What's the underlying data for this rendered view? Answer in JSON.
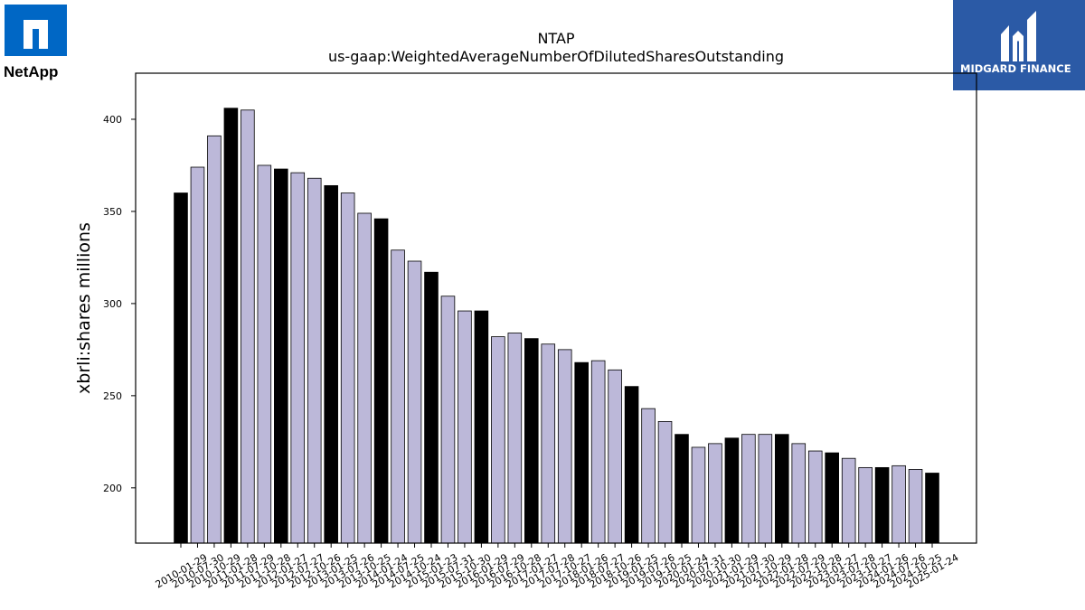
{
  "logos": {
    "left_brand": "NetApp",
    "right_brand": "MIDGARD FINANCE"
  },
  "chart_data": {
    "type": "bar",
    "title": "NTAP",
    "subtitle": "us-gaap:WeightedAverageNumberOfDilutedSharesOutstanding",
    "xlabel": "",
    "ylabel": "xbrli:shares millions",
    "ylim": [
      170,
      425
    ],
    "yticks": [
      200,
      250,
      300,
      350,
      400
    ],
    "grid": false,
    "colors": {
      "annual": "#000000",
      "quarterly": "#bcb8d9",
      "edge": "#000000"
    },
    "categories": [
      "2010-01-29",
      "2010-07-30",
      "2010-10-29",
      "2011-01-28",
      "2011-07-29",
      "2011-10-28",
      "2012-01-27",
      "2012-07-27",
      "2012-10-26",
      "2013-01-25",
      "2013-07-26",
      "2013-10-25",
      "2014-01-24",
      "2014-07-25",
      "2014-10-24",
      "2015-01-23",
      "2015-07-31",
      "2015-10-30",
      "2016-01-29",
      "2016-07-29",
      "2016-10-28",
      "2017-01-27",
      "2017-07-28",
      "2017-10-27",
      "2018-01-26",
      "2018-07-27",
      "2018-10-26",
      "2019-01-25",
      "2019-07-26",
      "2019-10-25",
      "2020-01-24",
      "2020-07-31",
      "2020-10-30",
      "2021-01-29",
      "2021-07-30",
      "2021-10-29",
      "2022-01-28",
      "2022-07-29",
      "2022-10-28",
      "2023-01-27",
      "2023-07-28",
      "2023-10-27",
      "2024-01-26",
      "2024-07-26",
      "2024-10-25",
      "2025-01-24"
    ],
    "values": [
      360,
      374,
      391,
      406,
      405,
      375,
      373,
      371,
      368,
      364,
      360,
      349,
      346,
      329,
      323,
      317,
      304,
      296,
      296,
      282,
      284,
      281,
      278,
      275,
      268,
      269,
      264,
      255,
      243,
      236,
      229,
      222,
      224,
      227,
      229,
      229,
      229,
      224,
      220,
      219,
      216,
      211,
      211,
      212,
      210,
      208
    ],
    "highlight": [
      1,
      0,
      0,
      1,
      0,
      0,
      1,
      0,
      0,
      1,
      0,
      0,
      1,
      0,
      0,
      1,
      0,
      0,
      1,
      0,
      0,
      1,
      0,
      0,
      1,
      0,
      0,
      1,
      0,
      0,
      1,
      0,
      0,
      1,
      0,
      0,
      1,
      0,
      0,
      1,
      0,
      0,
      1,
      0,
      0,
      1
    ]
  }
}
